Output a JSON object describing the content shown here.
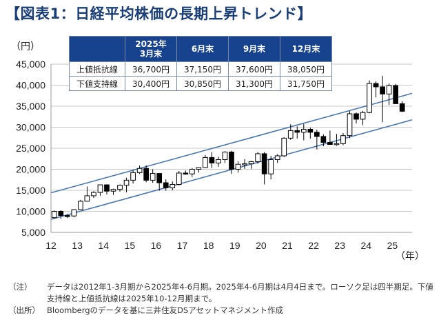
{
  "title": "【図表1：日経平均株価の長期上昇トレンド】",
  "table": {
    "headers": [
      "2025年\n3月末",
      "6月末",
      "9月末",
      "12月末"
    ],
    "rows": [
      {
        "label": "上値抵抗線",
        "values": [
          "36,700円",
          "37,150円",
          "37,600円",
          "38,050円"
        ]
      },
      {
        "label": "下値支持線",
        "values": [
          "30,400円",
          "30,850円",
          "31,300円",
          "31,750円"
        ]
      }
    ]
  },
  "notes": [
    {
      "tag": "（注）",
      "text": "データは2012年1-3月期から2025年4-6月期。2025年4-6月期は4月4日まで。ローソク足は四半期足。下値支持線と上値抵抗線は2025年10-12月期まで。"
    },
    {
      "tag": "（出所）",
      "text": "Bloombergのデータを基に三井住友DSアセットマネジメント作成"
    }
  ],
  "colors": {
    "title": "#1a3f78",
    "header_bg": "#17438e",
    "trend_line": "#4a78b4",
    "candle": "#000000"
  },
  "chart_data": {
    "type": "candlestick",
    "ylabel": "（円）",
    "xlabel": "（年）",
    "ylim": [
      5000,
      45000
    ],
    "yticks": [
      5000,
      10000,
      15000,
      20000,
      25000,
      30000,
      35000,
      40000,
      45000
    ],
    "ytick_labels": [
      "5,000",
      "10,000",
      "15,000",
      "20,000",
      "25,000",
      "30,000",
      "35,000",
      "40,000",
      "45,000"
    ],
    "xlim": [
      2012,
      2025.75
    ],
    "xticks": [
      2012,
      2013,
      2014,
      2015,
      2016,
      2017,
      2018,
      2019,
      2020,
      2021,
      2022,
      2023,
      2024,
      2025
    ],
    "xtick_labels": [
      "12",
      "13",
      "14",
      "15",
      "16",
      "17",
      "18",
      "19",
      "20",
      "21",
      "22",
      "23",
      "24",
      "25"
    ],
    "candles": [
      {
        "q": "2012Q1",
        "o": 8500,
        "h": 10200,
        "l": 8300,
        "c": 10000
      },
      {
        "q": "2012Q2",
        "o": 10000,
        "h": 10300,
        "l": 8200,
        "c": 9000
      },
      {
        "q": "2012Q3",
        "o": 9000,
        "h": 9300,
        "l": 8400,
        "c": 8900
      },
      {
        "q": "2012Q4",
        "o": 8900,
        "h": 10400,
        "l": 8600,
        "c": 10400
      },
      {
        "q": "2013Q1",
        "o": 10400,
        "h": 12700,
        "l": 10400,
        "c": 12400
      },
      {
        "q": "2013Q2",
        "o": 12400,
        "h": 15900,
        "l": 12400,
        "c": 13700
      },
      {
        "q": "2013Q3",
        "o": 13700,
        "h": 14800,
        "l": 13200,
        "c": 14500
      },
      {
        "q": "2013Q4",
        "o": 14500,
        "h": 16300,
        "l": 13700,
        "c": 16300
      },
      {
        "q": "2014Q1",
        "o": 16300,
        "h": 16400,
        "l": 14000,
        "c": 14800
      },
      {
        "q": "2014Q2",
        "o": 14800,
        "h": 15400,
        "l": 13900,
        "c": 15200
      },
      {
        "q": "2014Q3",
        "o": 15200,
        "h": 16400,
        "l": 14700,
        "c": 16200
      },
      {
        "q": "2014Q4",
        "o": 16200,
        "h": 18000,
        "l": 14500,
        "c": 17400
      },
      {
        "q": "2015Q1",
        "o": 17400,
        "h": 19800,
        "l": 16600,
        "c": 19200
      },
      {
        "q": "2015Q2",
        "o": 19200,
        "h": 20900,
        "l": 18900,
        "c": 20200
      },
      {
        "q": "2015Q3",
        "o": 20200,
        "h": 20900,
        "l": 16900,
        "c": 17400
      },
      {
        "q": "2015Q4",
        "o": 17400,
        "h": 20000,
        "l": 16800,
        "c": 19000
      },
      {
        "q": "2016Q1",
        "o": 19000,
        "h": 19100,
        "l": 14900,
        "c": 16800
      },
      {
        "q": "2016Q2",
        "o": 16800,
        "h": 17600,
        "l": 14900,
        "c": 15600
      },
      {
        "q": "2016Q3",
        "o": 15600,
        "h": 17100,
        "l": 15000,
        "c": 16400
      },
      {
        "q": "2016Q4",
        "o": 16400,
        "h": 19600,
        "l": 16100,
        "c": 19100
      },
      {
        "q": "2017Q1",
        "o": 19100,
        "h": 19700,
        "l": 18700,
        "c": 18900
      },
      {
        "q": "2017Q2",
        "o": 18900,
        "h": 20300,
        "l": 18200,
        "c": 20000
      },
      {
        "q": "2017Q3",
        "o": 20000,
        "h": 20500,
        "l": 19200,
        "c": 20400
      },
      {
        "q": "2017Q4",
        "o": 20400,
        "h": 23400,
        "l": 20300,
        "c": 22800
      },
      {
        "q": "2018Q1",
        "o": 22800,
        "h": 24100,
        "l": 20300,
        "c": 21500
      },
      {
        "q": "2018Q2",
        "o": 21500,
        "h": 23000,
        "l": 20600,
        "c": 22300
      },
      {
        "q": "2018Q3",
        "o": 22300,
        "h": 24300,
        "l": 21500,
        "c": 24100
      },
      {
        "q": "2018Q4",
        "o": 24100,
        "h": 24400,
        "l": 18900,
        "c": 20000
      },
      {
        "q": "2019Q1",
        "o": 20000,
        "h": 21900,
        "l": 19200,
        "c": 21200
      },
      {
        "q": "2019Q2",
        "o": 21200,
        "h": 22400,
        "l": 20100,
        "c": 21300
      },
      {
        "q": "2019Q3",
        "o": 21300,
        "h": 22000,
        "l": 20100,
        "c": 21800
      },
      {
        "q": "2019Q4",
        "o": 21800,
        "h": 24100,
        "l": 21300,
        "c": 23700
      },
      {
        "q": "2020Q1",
        "o": 23700,
        "h": 24100,
        "l": 16400,
        "c": 18900
      },
      {
        "q": "2020Q2",
        "o": 18900,
        "h": 23200,
        "l": 17600,
        "c": 22300
      },
      {
        "q": "2020Q3",
        "o": 22300,
        "h": 23600,
        "l": 21500,
        "c": 23200
      },
      {
        "q": "2020Q4",
        "o": 23200,
        "h": 27600,
        "l": 22900,
        "c": 27400
      },
      {
        "q": "2021Q1",
        "o": 27400,
        "h": 30700,
        "l": 27000,
        "c": 29200
      },
      {
        "q": "2021Q2",
        "o": 29200,
        "h": 30200,
        "l": 27300,
        "c": 28800
      },
      {
        "q": "2021Q3",
        "o": 28800,
        "h": 30800,
        "l": 26900,
        "c": 29500
      },
      {
        "q": "2021Q4",
        "o": 29500,
        "h": 29900,
        "l": 27300,
        "c": 28800
      },
      {
        "q": "2022Q1",
        "o": 28800,
        "h": 29400,
        "l": 24700,
        "c": 27800
      },
      {
        "q": "2022Q2",
        "o": 27800,
        "h": 28300,
        "l": 25500,
        "c": 26400
      },
      {
        "q": "2022Q3",
        "o": 26400,
        "h": 29200,
        "l": 25900,
        "c": 25900
      },
      {
        "q": "2022Q4",
        "o": 25900,
        "h": 28400,
        "l": 25600,
        "c": 26100
      },
      {
        "q": "2023Q1",
        "o": 26100,
        "h": 28600,
        "l": 25700,
        "c": 28000
      },
      {
        "q": "2023Q2",
        "o": 28000,
        "h": 33800,
        "l": 27400,
        "c": 33200
      },
      {
        "q": "2023Q3",
        "o": 33200,
        "h": 33500,
        "l": 30900,
        "c": 31900
      },
      {
        "q": "2023Q4",
        "o": 31900,
        "h": 33900,
        "l": 30500,
        "c": 33500
      },
      {
        "q": "2024Q1",
        "o": 33500,
        "h": 41100,
        "l": 33300,
        "c": 40400
      },
      {
        "q": "2024Q2",
        "o": 40400,
        "h": 40900,
        "l": 37100,
        "c": 39600
      },
      {
        "q": "2024Q3",
        "o": 39600,
        "h": 42200,
        "l": 31200,
        "c": 37900
      },
      {
        "q": "2024Q4",
        "o": 37900,
        "h": 40400,
        "l": 35300,
        "c": 39900
      },
      {
        "q": "2025Q1",
        "o": 39900,
        "h": 40300,
        "l": 35600,
        "c": 35600
      },
      {
        "q": "2025Q2",
        "o": 35600,
        "h": 36200,
        "l": 33600,
        "c": 33800
      }
    ],
    "trendlines": [
      {
        "name": "上値抵抗線",
        "x": [
          2012,
          2025.75
        ],
        "y": [
          14400,
          38050
        ]
      },
      {
        "name": "下値支持線",
        "x": [
          2012,
          2025.75
        ],
        "y": [
          8100,
          31750
        ]
      }
    ]
  }
}
